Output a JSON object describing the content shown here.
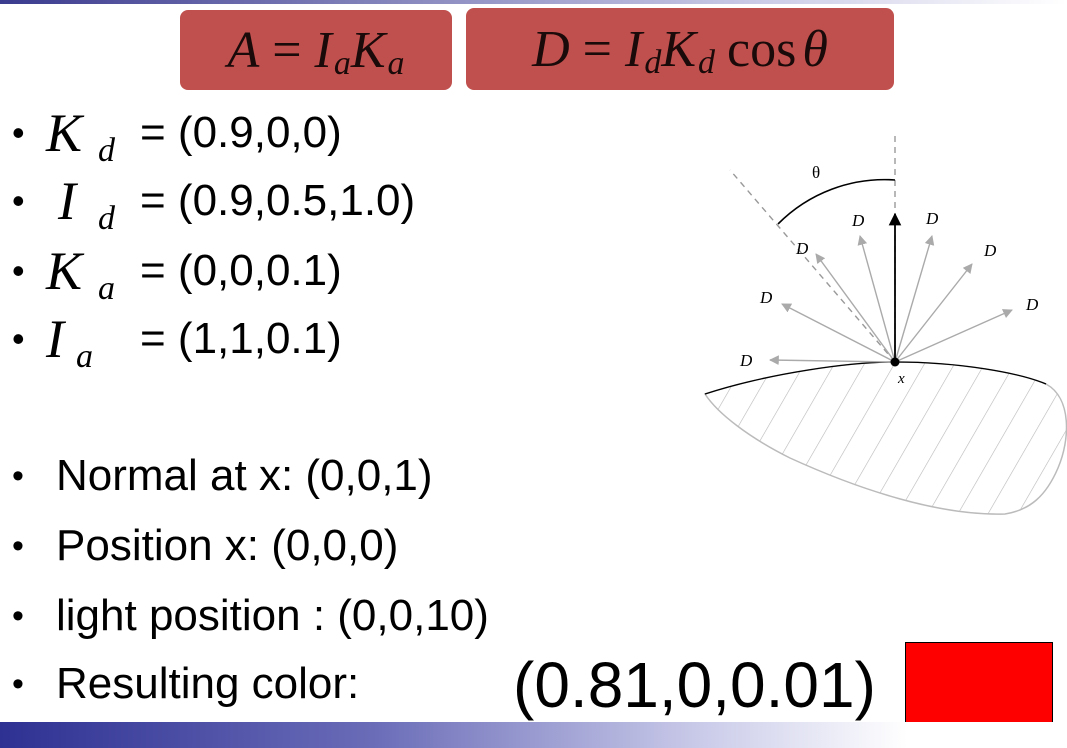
{
  "formulas": {
    "ambient": {
      "lhs": "A",
      "eq": " = ",
      "f1": "I",
      "s1": "a",
      "f2": "K",
      "s2": "a"
    },
    "diffuse": {
      "lhs": "D",
      "eq": " = ",
      "f1": "I",
      "s1": "d",
      "f2": "K",
      "s2": "d",
      "cos": "cos",
      "theta": "θ"
    }
  },
  "params": [
    {
      "symbol": "K",
      "sub": "d",
      "value": "= (0.9,0,0)"
    },
    {
      "symbol": "I",
      "sub": "d",
      "value": "= (0.9,0.5,1.0)"
    },
    {
      "symbol": "K",
      "sub": "a",
      "value": "= (0,0,0.1)"
    },
    {
      "symbol": "I",
      "sub": "a",
      "value": "= (1,1,0.1)"
    }
  ],
  "bullets": [
    "Normal at x: (0,0,1)",
    "Position x: (0,0,0)",
    "light position : (0,0,10)",
    "Resulting color:"
  ],
  "bullet_char": "•",
  "result": {
    "value": "(0.81,0,0.01)",
    "swatch_color": "#ff0000"
  },
  "diagram": {
    "theta_label": "θ",
    "ray_label": "D",
    "point_label": "x"
  },
  "colors": {
    "formula_bg": "#c0504d",
    "bar_blue": "#2e3192"
  }
}
